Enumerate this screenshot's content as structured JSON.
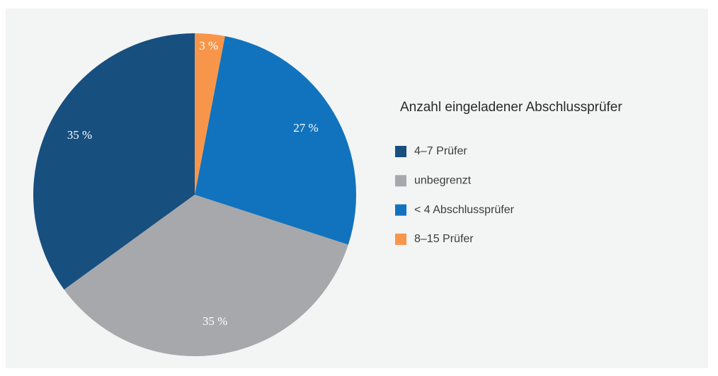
{
  "chart_data": {
    "type": "pie",
    "legend_title": "Anzahl eingeladener Abschlussprüfer",
    "series": [
      {
        "name": "4–7 Prüfer",
        "color": "#174f7f",
        "values": [
          35
        ],
        "value_labels": [
          "35 %"
        ]
      },
      {
        "name": "unbegrenzt",
        "color": "#a7a8ab",
        "values": [
          35
        ],
        "value_labels": [
          "35 %"
        ]
      },
      {
        "name": "< 4 Abschlussprüfer",
        "color": "#1173bd",
        "values": [
          27
        ],
        "value_labels": [
          "27 %"
        ]
      },
      {
        "name": "8–15 Prüfer",
        "color": "#f7964a",
        "values": [
          3
        ],
        "value_labels": [
          "3 %"
        ]
      }
    ]
  }
}
